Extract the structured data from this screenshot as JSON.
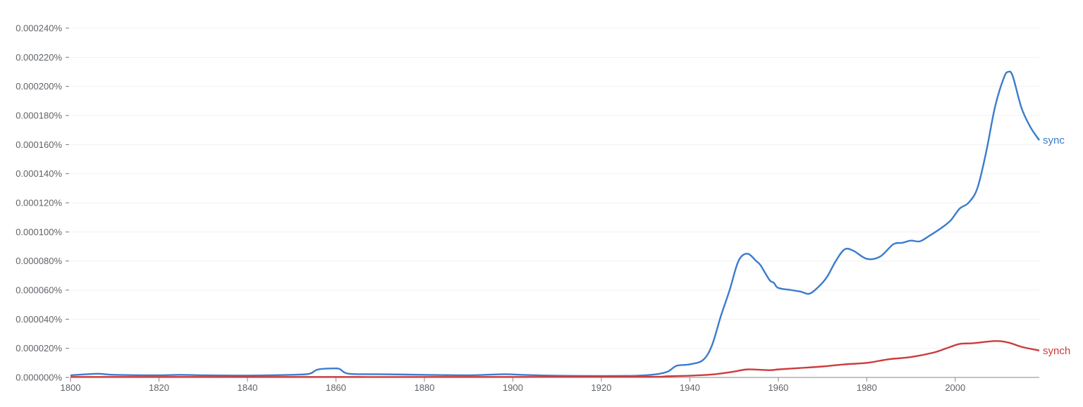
{
  "chart_data": {
    "type": "line",
    "title": "",
    "xlabel": "",
    "ylabel": "",
    "xlim": [
      1800,
      2019
    ],
    "ylim": [
      0,
      0.00024
    ],
    "y_unit": "%",
    "grid": true,
    "legend": "inline labels at line ends (right)",
    "yticks": [
      "0.000000%",
      "0.000020%",
      "0.000040%",
      "0.000060%",
      "0.000080%",
      "0.000100%",
      "0.000120%",
      "0.000140%",
      "0.000160%",
      "0.000180%",
      "0.000200%",
      "0.000220%",
      "0.000240%"
    ],
    "xticks": [
      "1800",
      "1820",
      "1840",
      "1860",
      "1880",
      "1900",
      "1920",
      "1940",
      "1960",
      "1980",
      "2000"
    ],
    "series": [
      {
        "name": "sync",
        "color": "#3b7ccc",
        "points": [
          [
            1800,
            1.5e-06
          ],
          [
            1806,
            2.5e-06
          ],
          [
            1810,
            1.8e-06
          ],
          [
            1820,
            1.5e-06
          ],
          [
            1825,
            1.8e-06
          ],
          [
            1830,
            1.5e-06
          ],
          [
            1840,
            1.3e-06
          ],
          [
            1850,
            1.8e-06
          ],
          [
            1854,
            2.5e-06
          ],
          [
            1856,
            5.5e-06
          ],
          [
            1860,
            6.2e-06
          ],
          [
            1861,
            5.5e-06
          ],
          [
            1863,
            2.5e-06
          ],
          [
            1870,
            2.2e-06
          ],
          [
            1880,
            1.8e-06
          ],
          [
            1890,
            1.5e-06
          ],
          [
            1898,
            2.2e-06
          ],
          [
            1902,
            1.8e-06
          ],
          [
            1910,
            1.2e-06
          ],
          [
            1920,
            1e-06
          ],
          [
            1928,
            1.2e-06
          ],
          [
            1932,
            2e-06
          ],
          [
            1935,
            4e-06
          ],
          [
            1937,
            8e-06
          ],
          [
            1940,
            9e-06
          ],
          [
            1943,
            1.2e-05
          ],
          [
            1945,
            2.2e-05
          ],
          [
            1947,
            4.2e-05
          ],
          [
            1949,
            6e-05
          ],
          [
            1951,
            8e-05
          ],
          [
            1953,
            8.5e-05
          ],
          [
            1955,
            8e-05
          ],
          [
            1956,
            7.7e-05
          ],
          [
            1958,
            6.7e-05
          ],
          [
            1959,
            6.5e-05
          ],
          [
            1960,
            6.15e-05
          ],
          [
            1963,
            6e-05
          ],
          [
            1965,
            5.9e-05
          ],
          [
            1967,
            5.75e-05
          ],
          [
            1969,
            6.2e-05
          ],
          [
            1971,
            6.9e-05
          ],
          [
            1973,
            8e-05
          ],
          [
            1975,
            8.8e-05
          ],
          [
            1977,
            8.7e-05
          ],
          [
            1980,
            8.15e-05
          ],
          [
            1983,
            8.3e-05
          ],
          [
            1986,
            9.15e-05
          ],
          [
            1988,
            9.25e-05
          ],
          [
            1990,
            9.4e-05
          ],
          [
            1992,
            9.35e-05
          ],
          [
            1994,
            9.7e-05
          ],
          [
            1997,
            0.000103
          ],
          [
            1999,
            0.000108
          ],
          [
            2001,
            0.000116
          ],
          [
            2003,
            0.00012
          ],
          [
            2005,
            0.00013
          ],
          [
            2007,
            0.000155
          ],
          [
            2009,
            0.000186
          ],
          [
            2011,
            0.000206
          ],
          [
            2012,
            0.00021
          ],
          [
            2013,
            0.000207
          ],
          [
            2015,
            0.000185
          ],
          [
            2017,
            0.000172
          ],
          [
            2019,
            0.000163
          ]
        ]
      },
      {
        "name": "synch",
        "color": "#cc3c3c",
        "points": [
          [
            1800,
            3e-07
          ],
          [
            1850,
            3e-07
          ],
          [
            1900,
            3e-07
          ],
          [
            1930,
            4e-07
          ],
          [
            1935,
            8e-07
          ],
          [
            1940,
            1.2e-06
          ],
          [
            1945,
            2e-06
          ],
          [
            1950,
            4e-06
          ],
          [
            1953,
            5.5e-06
          ],
          [
            1958,
            5e-06
          ],
          [
            1960,
            5.5e-06
          ],
          [
            1965,
            6.5e-06
          ],
          [
            1970,
            7.5e-06
          ],
          [
            1975,
            9e-06
          ],
          [
            1980,
            1e-05
          ],
          [
            1985,
            1.25e-05
          ],
          [
            1990,
            1.4e-05
          ],
          [
            1995,
            1.7e-05
          ],
          [
            1998,
            2e-05
          ],
          [
            2001,
            2.3e-05
          ],
          [
            2004,
            2.35e-05
          ],
          [
            2009,
            2.5e-05
          ],
          [
            2012,
            2.4e-05
          ],
          [
            2015,
            2.1e-05
          ],
          [
            2019,
            1.85e-05
          ]
        ]
      }
    ]
  }
}
